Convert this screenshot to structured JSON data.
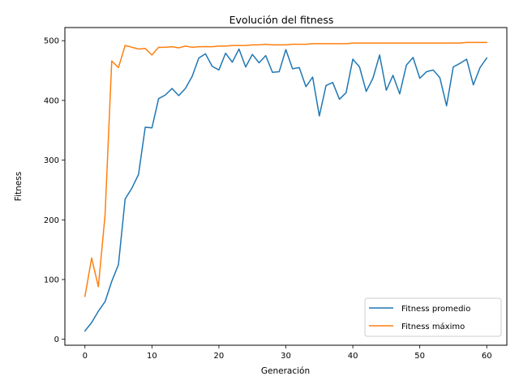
{
  "chart_data": {
    "type": "line",
    "title": "Evolución del fitness",
    "xlabel": "Generación",
    "ylabel": "Fitness",
    "xlim": [
      -3,
      63
    ],
    "ylim": [
      -10,
      522
    ],
    "xticks": [
      0,
      10,
      20,
      30,
      40,
      50,
      60
    ],
    "yticks": [
      0,
      100,
      200,
      300,
      400,
      500
    ],
    "grid": false,
    "legend_position": "bottom-right",
    "series": [
      {
        "name": "Fitness promedio",
        "color": "#1f77b4",
        "x": [
          0,
          1,
          2,
          3,
          4,
          5,
          6,
          7,
          8,
          9,
          10,
          11,
          12,
          13,
          14,
          15,
          16,
          17,
          18,
          19,
          20,
          21,
          22,
          23,
          24,
          25,
          26,
          27,
          28,
          29,
          30,
          31,
          32,
          33,
          34,
          35,
          36,
          37,
          38,
          39,
          40,
          41,
          42,
          43,
          44,
          45,
          46,
          47,
          48,
          49,
          50,
          51,
          52,
          53,
          54,
          55,
          56,
          57,
          58,
          59,
          60
        ],
        "values": [
          14,
          28,
          47,
          63,
          97,
          125,
          235,
          253,
          276,
          355,
          354,
          403,
          409,
          420,
          408,
          420,
          440,
          471,
          478,
          457,
          451,
          479,
          464,
          486,
          456,
          477,
          463,
          475,
          447,
          448,
          485,
          453,
          455,
          423,
          439,
          374,
          425,
          430,
          402,
          413,
          469,
          456,
          415,
          437,
          476,
          417,
          442,
          411,
          459,
          472,
          437,
          448,
          451,
          438,
          391,
          456,
          462,
          469,
          426,
          455,
          471
        ]
      },
      {
        "name": "Fitness máximo",
        "color": "#ff7f0e",
        "x": [
          0,
          1,
          2,
          3,
          4,
          5,
          6,
          7,
          8,
          9,
          10,
          11,
          12,
          13,
          14,
          15,
          16,
          17,
          18,
          19,
          20,
          21,
          22,
          23,
          24,
          25,
          26,
          27,
          28,
          29,
          30,
          31,
          32,
          33,
          34,
          35,
          36,
          37,
          38,
          39,
          40,
          41,
          42,
          43,
          44,
          45,
          46,
          47,
          48,
          49,
          50,
          51,
          52,
          53,
          54,
          55,
          56,
          57,
          58,
          59,
          60
        ],
        "values": [
          72,
          136,
          88,
          208,
          466,
          455,
          492,
          489,
          486,
          487,
          476,
          489,
          489,
          490,
          488,
          491,
          489,
          490,
          490,
          490,
          491,
          491,
          492,
          492,
          492,
          493,
          493,
          494,
          493,
          493,
          493,
          494,
          494,
          494,
          495,
          495,
          495,
          495,
          495,
          495,
          496,
          496,
          496,
          496,
          496,
          496,
          496,
          496,
          496,
          496,
          496,
          496,
          496,
          496,
          496,
          496,
          496,
          497,
          497,
          497,
          497
        ]
      }
    ]
  }
}
